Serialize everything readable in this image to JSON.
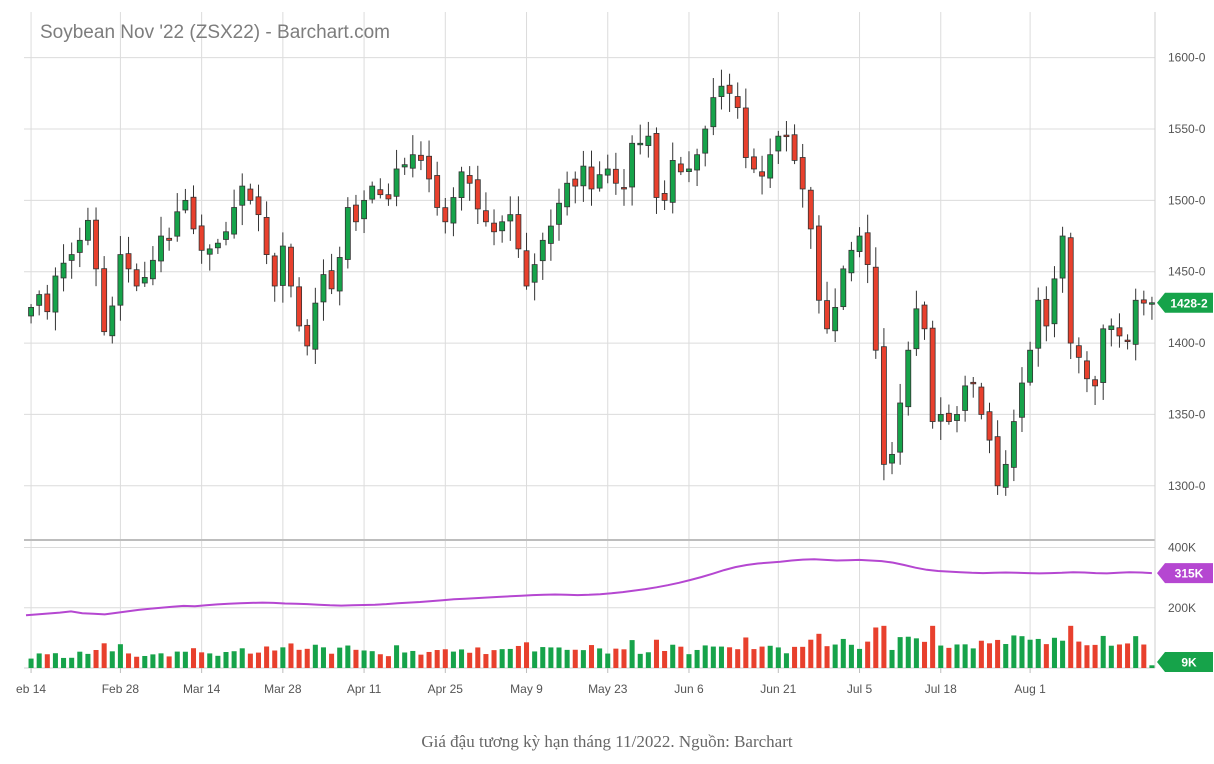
{
  "chart_title": "Soybean Nov '22 (ZSX22) - Barchart.com",
  "caption": "Giá đậu tương kỳ hạn tháng 11/2022. Nguồn: Barchart",
  "colors": {
    "up": "#16a34a",
    "down": "#e8402d",
    "open_interest": "#b547d1",
    "grid": "#dcdcdc",
    "axis_text": "#555555"
  },
  "chart_data": {
    "type": "candlestick",
    "title": "Soybean Nov '22 (ZSX22) - Barchart.com",
    "price_axis": {
      "ticks": [
        "1600-0",
        "1550-0",
        "1500-0",
        "1450-0",
        "1400-0",
        "1350-0",
        "1300-0"
      ],
      "tick_values": [
        1600,
        1550,
        1500,
        1450,
        1400,
        1350,
        1300
      ],
      "range": [
        1262,
        1632
      ]
    },
    "volume_axis": {
      "ticks": [
        "400K",
        "200K"
      ],
      "tick_values": [
        400000,
        200000
      ],
      "range": [
        0,
        405000
      ]
    },
    "x_tick_labels": [
      "eb 14",
      "Feb 28",
      "Mar 14",
      "Mar 28",
      "Apr 11",
      "Apr 25",
      "May 9",
      "May 23",
      "Jun 6",
      "Jun 21",
      "Jul 5",
      "Jul 18",
      "Aug 1"
    ],
    "x_tick_index": [
      0,
      11,
      21,
      31,
      41,
      51,
      61,
      71,
      81,
      92,
      102,
      112,
      123
    ],
    "last_price_label": "1428-2",
    "last_price": 1428.25,
    "open_interest_label": "315K",
    "open_interest_last": 315000,
    "volume_label": "9K",
    "volume_last": 9000,
    "closes": [
      1425,
      1434,
      1422,
      1447,
      1456,
      1462,
      1472,
      1486,
      1452,
      1408,
      1426,
      1462,
      1452,
      1440,
      1446,
      1458,
      1475,
      1472,
      1492,
      1500,
      1480,
      1465,
      1466,
      1470,
      1478,
      1495,
      1510,
      1500,
      1490,
      1462,
      1440,
      1468,
      1440,
      1412,
      1398,
      1428,
      1448,
      1438,
      1460,
      1495,
      1485,
      1500,
      1510,
      1504,
      1501,
      1522,
      1525,
      1532,
      1528,
      1515,
      1495,
      1485,
      1502,
      1520,
      1512,
      1494,
      1485,
      1478,
      1485,
      1490,
      1466,
      1440,
      1455,
      1472,
      1482,
      1498,
      1512,
      1510,
      1524,
      1508,
      1518,
      1522,
      1512,
      1508,
      1540,
      1540,
      1545,
      1502,
      1500,
      1528,
      1520,
      1522,
      1532,
      1550,
      1572,
      1580,
      1575,
      1565,
      1530,
      1522,
      1517,
      1532,
      1545,
      1545,
      1528,
      1508,
      1480,
      1430,
      1410,
      1425,
      1452,
      1465,
      1475,
      1455,
      1395,
      1315,
      1322,
      1358,
      1395,
      1424,
      1410,
      1345,
      1350,
      1345,
      1350,
      1370,
      1372,
      1350,
      1332,
      1300,
      1315,
      1345,
      1372,
      1395,
      1430,
      1412,
      1445,
      1475,
      1400,
      1390,
      1375,
      1370,
      1410,
      1412,
      1405,
      1402,
      1430,
      1428,
      1428.25
    ],
    "open_interest": [
      175000,
      178000,
      181000,
      184000,
      188000,
      182000,
      180000,
      178000,
      183000,
      188000,
      193000,
      197000,
      200000,
      203000,
      206000,
      205000,
      208000,
      211000,
      213000,
      215000,
      216000,
      217000,
      216000,
      214000,
      213000,
      212000,
      210000,
      208000,
      207000,
      208000,
      209000,
      210000,
      212000,
      215000,
      217000,
      219000,
      222000,
      225000,
      228000,
      230000,
      232000,
      234000,
      236000,
      238000,
      240000,
      242000,
      243000,
      244000,
      243000,
      242000,
      243000,
      245000,
      248000,
      252000,
      257000,
      262000,
      268000,
      275000,
      283000,
      292000,
      302000,
      313000,
      325000,
      335000,
      342000,
      347000,
      350000,
      353000,
      357000,
      360000,
      361000,
      359000,
      357000,
      358000,
      359000,
      357000,
      355000,
      350000,
      342000,
      333000,
      326000,
      322000,
      320000,
      318000,
      316000,
      315000,
      316000,
      317000,
      316000,
      315000,
      314000,
      315000,
      316000,
      318000,
      317000,
      315000,
      314000,
      316000,
      318000,
      317000,
      315000
    ]
  }
}
